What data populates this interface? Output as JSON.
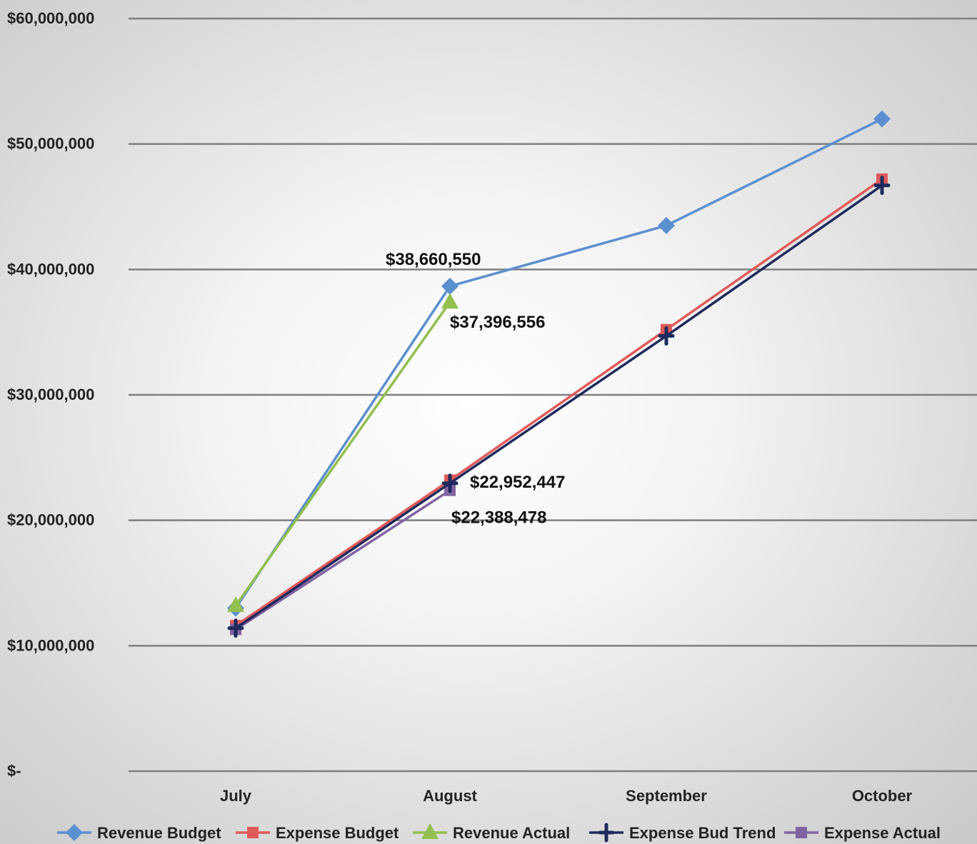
{
  "chart_data": {
    "type": "line",
    "title": "",
    "xlabel": "",
    "ylabel": "",
    "categories": [
      "July",
      "August",
      "September",
      "October"
    ],
    "ylim": [
      0,
      60000000
    ],
    "yticks": [
      {
        "value": 0,
        "label": "$-"
      },
      {
        "value": 10000000,
        "label": "$10,000,000"
      },
      {
        "value": 20000000,
        "label": "$20,000,000"
      },
      {
        "value": 30000000,
        "label": "$30,000,000"
      },
      {
        "value": 40000000,
        "label": "$40,000,000"
      },
      {
        "value": 50000000,
        "label": "$50,000,000"
      },
      {
        "value": 60000000,
        "label": "$60,000,000"
      }
    ],
    "grid": true,
    "legend_position": "bottom",
    "series": [
      {
        "name": "Revenue Budget",
        "color": "#5b8fcf",
        "marker": "diamond",
        "values": [
          13000000,
          38660550,
          43500000,
          52000000
        ]
      },
      {
        "name": "Expense Budget",
        "color": "#e05a5a",
        "marker": "square",
        "values": [
          11600000,
          23200000,
          35200000,
          47200000
        ]
      },
      {
        "name": "Revenue Actual",
        "color": "#93bf4f",
        "marker": "triangle",
        "values": [
          13200000,
          37396556,
          null,
          null
        ]
      },
      {
        "name": "Expense Bud Trend",
        "color": "#1f2a5c",
        "marker": "cross",
        "values": [
          11400000,
          22952447,
          34700000,
          46700000
        ]
      },
      {
        "name": "Expense Actual",
        "color": "#8064a2",
        "marker": "square",
        "values": [
          11300000,
          22388478,
          null,
          null
        ]
      }
    ],
    "annotations": [
      {
        "series": "Revenue Budget",
        "category": "August",
        "label": "$38,660,550"
      },
      {
        "series": "Revenue Actual",
        "category": "August",
        "label": "$37,396,556"
      },
      {
        "series": "Expense Bud Trend",
        "category": "August",
        "label": "$22,952,447"
      },
      {
        "series": "Expense Actual",
        "category": "August",
        "label": "$22,388,478"
      }
    ]
  }
}
